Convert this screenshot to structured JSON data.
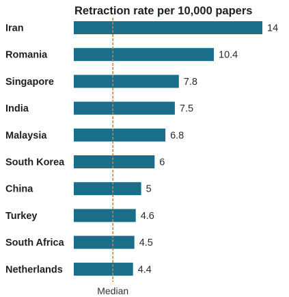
{
  "chart_data": {
    "type": "bar",
    "orientation": "horizontal",
    "title": "Retraction rate per 10,000 papers",
    "categories": [
      "Iran",
      "Romania",
      "Singapore",
      "India",
      "Malaysia",
      "South Korea",
      "China",
      "Turkey",
      "South Africa",
      "Netherlands"
    ],
    "values": [
      14,
      10.4,
      7.8,
      7.5,
      6.8,
      6,
      5,
      4.6,
      4.5,
      4.4
    ],
    "value_labels": [
      "14",
      "10.4",
      "7.8",
      "7.5",
      "6.8",
      "6",
      "5",
      "4.6",
      "4.5",
      "4.4"
    ],
    "xlim": [
      0,
      14
    ],
    "grid": false,
    "legend": "none",
    "reference_line": {
      "label": "Median",
      "value": 2.9,
      "style": "dashed",
      "color": "#e07b1f"
    },
    "colors": {
      "bar": "#1b6e8a",
      "text": "#1e1e1e"
    }
  }
}
